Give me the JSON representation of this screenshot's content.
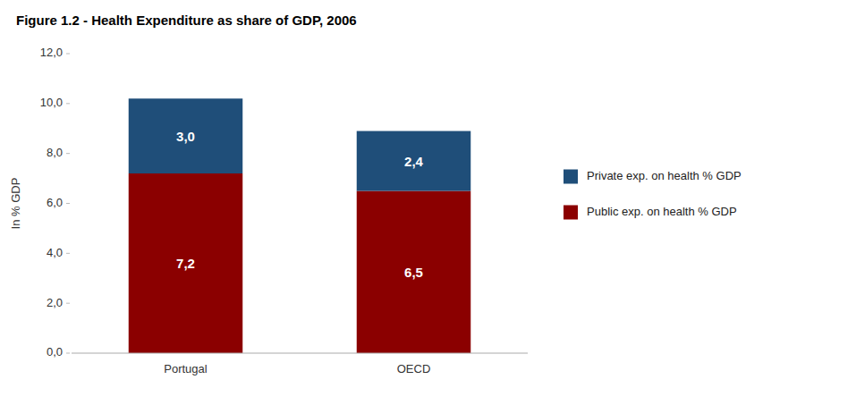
{
  "chart_data": {
    "type": "bar",
    "title": "Figure 1.2 - Health Expenditure as share of GDP, 2006",
    "categories": [
      "Portugal",
      "OECD"
    ],
    "series": [
      {
        "name": "Public exp. on health % GDP",
        "color": "#8B0000",
        "values": [
          7.2,
          6.5
        ],
        "value_labels": [
          "7,2",
          "6,5"
        ]
      },
      {
        "name": "Private exp. on health % GDP",
        "color": "#1F4E79",
        "values": [
          3.0,
          2.4
        ],
        "value_labels": [
          "3,0",
          "2,4"
        ]
      }
    ],
    "y_label": "In % GDP",
    "ylim": [
      0,
      12
    ],
    "yticks": [
      {
        "value": 0.0,
        "label": "0,0"
      },
      {
        "value": 2.0,
        "label": "2,0"
      },
      {
        "value": 4.0,
        "label": "4,0"
      },
      {
        "value": 6.0,
        "label": "6,0"
      },
      {
        "value": 8.0,
        "label": "8,0"
      },
      {
        "value": 10.0,
        "label": "10,0"
      },
      {
        "value": 12.0,
        "label": "12,0"
      }
    ],
    "stacked": true,
    "data_labels": true,
    "grid": false,
    "legend": "right"
  }
}
